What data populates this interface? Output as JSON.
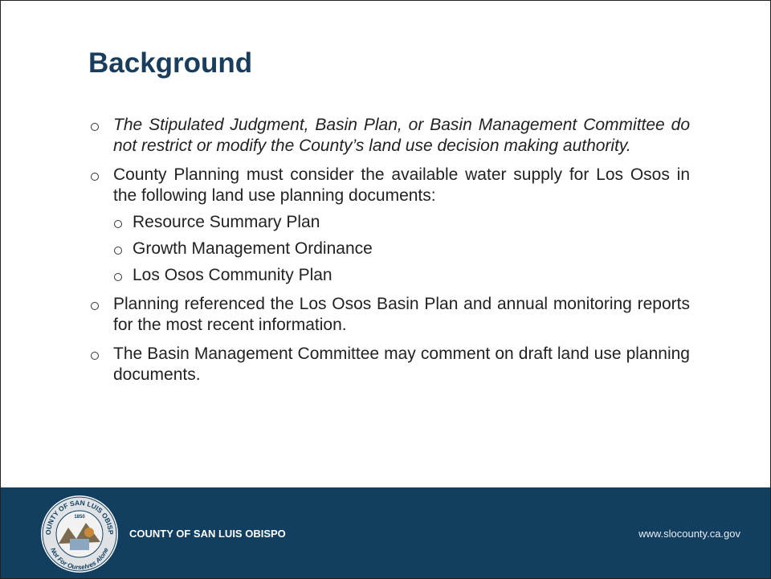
{
  "slide": {
    "title": "Background",
    "bullets": [
      {
        "text": "The Stipulated Judgment, Basin Plan, or Basin Management Committee do not restrict or modify the County’s land use decision making authority.",
        "italic": true
      },
      {
        "text": "County Planning must consider the available water supply for Los Osos in the following land use planning documents:",
        "items": [
          "Resource Summary Plan",
          "Growth Management Ordinance",
          "Los Osos Community Plan"
        ]
      },
      {
        "text": "Planning referenced the Los Osos Basin Plan and annual monitoring reports for the most recent information."
      },
      {
        "text": "The Basin Management Committee may comment on draft land use planning documents."
      }
    ],
    "footer": {
      "organization": "COUNTY OF SAN LUIS OBISPO",
      "website": "www.slocounty.ca.gov",
      "seal": {
        "top": "COUNTY OF SAN LUIS OBISPO",
        "year": "1850",
        "motto": "Not For Ourselves Alone"
      }
    }
  }
}
